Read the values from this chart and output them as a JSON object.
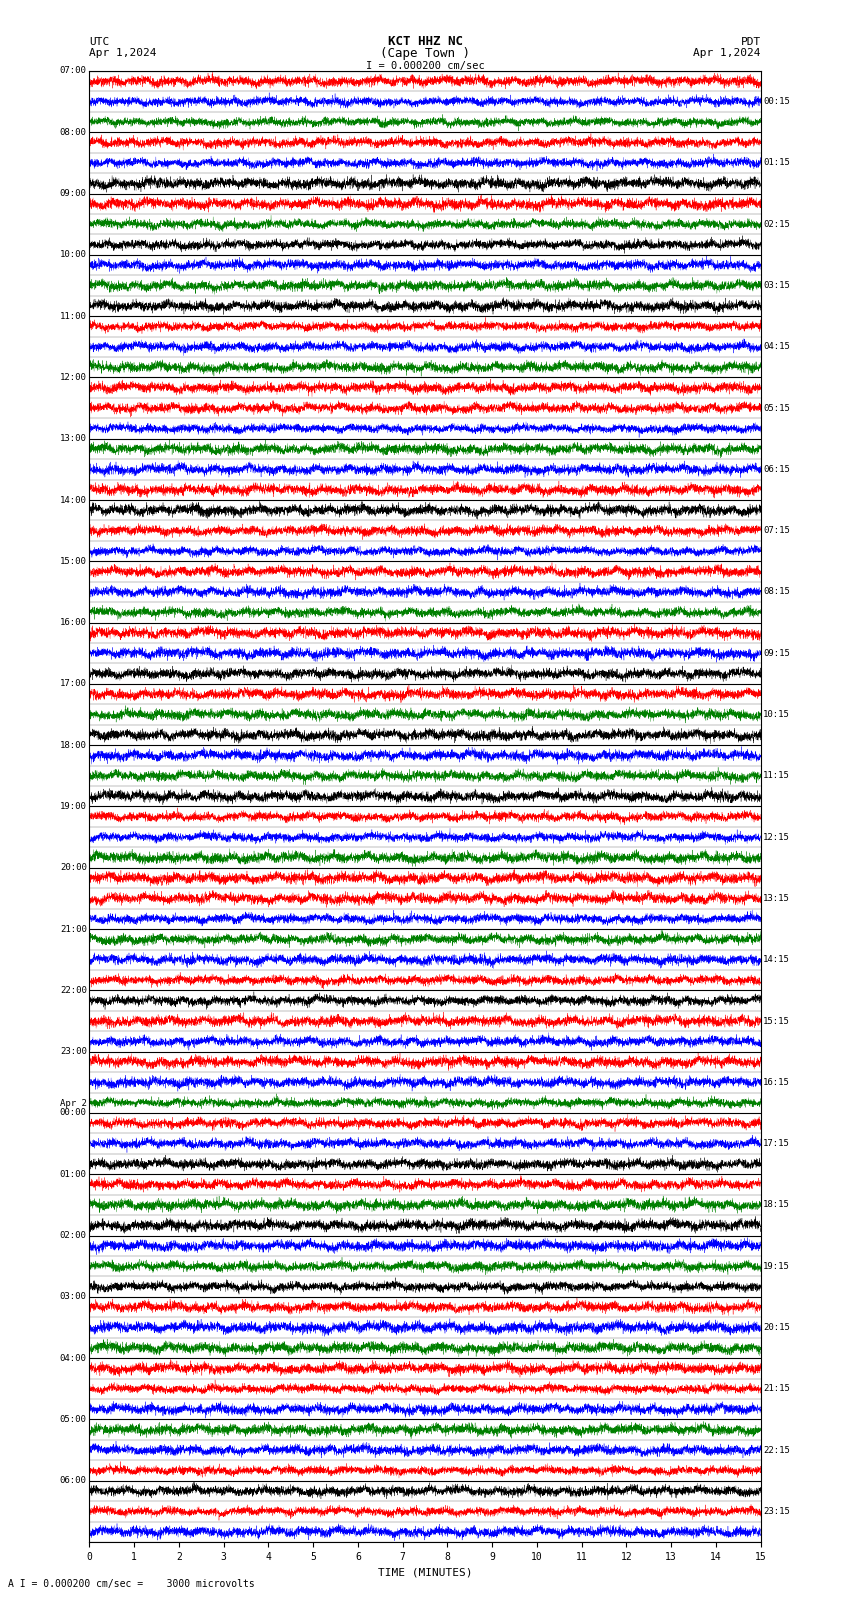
{
  "title_line1": "KCT HHZ NC",
  "title_line2": "(Cape Town )",
  "scale_text": "I = 0.000200 cm/sec",
  "utc_label": "UTC",
  "utc_date": "Apr 1,2024",
  "pdt_label": "PDT",
  "pdt_date": "Apr 1,2024",
  "bottom_note": "A I = 0.000200 cm/sec =    3000 microvolts",
  "left_times": [
    "07:00",
    "08:00",
    "09:00",
    "10:00",
    "11:00",
    "12:00",
    "13:00",
    "14:00",
    "15:00",
    "16:00",
    "17:00",
    "18:00",
    "19:00",
    "20:00",
    "21:00",
    "22:00",
    "23:00",
    "Apr 2\n00:00",
    "01:00",
    "02:00",
    "03:00",
    "04:00",
    "05:00",
    "06:00"
  ],
  "right_times": [
    "00:15",
    "01:15",
    "02:15",
    "03:15",
    "04:15",
    "05:15",
    "06:15",
    "07:15",
    "08:15",
    "09:15",
    "10:15",
    "11:15",
    "12:15",
    "13:15",
    "14:15",
    "15:15",
    "16:15",
    "17:15",
    "18:15",
    "19:15",
    "20:15",
    "21:15",
    "22:15",
    "23:15"
  ],
  "n_rows": 24,
  "n_cols": 15,
  "xlabel": "TIME (MINUTES)",
  "xticks": [
    0,
    1,
    2,
    3,
    4,
    5,
    6,
    7,
    8,
    9,
    10,
    11,
    12,
    13,
    14,
    15
  ],
  "fig_width": 8.5,
  "fig_height": 16.13,
  "dpi": 100,
  "noise_seed": 42,
  "sub_rows_per_row": 3,
  "pts_per_subrow": 6000,
  "amplitude": 0.44,
  "sub_row_colors_cycle": [
    [
      "red",
      "blue",
      "green"
    ],
    [
      "red",
      "blue",
      "black"
    ],
    [
      "red",
      "green",
      "black"
    ],
    [
      "blue",
      "green",
      "black"
    ],
    [
      "red",
      "blue",
      "green"
    ],
    [
      "red",
      "red",
      "blue"
    ],
    [
      "green",
      "blue",
      "red"
    ],
    [
      "black",
      "red",
      "blue"
    ],
    [
      "red",
      "blue",
      "green"
    ],
    [
      "red",
      "blue",
      "black"
    ],
    [
      "red",
      "green",
      "black"
    ],
    [
      "blue",
      "green",
      "black"
    ],
    [
      "red",
      "blue",
      "green"
    ],
    [
      "red",
      "red",
      "blue"
    ],
    [
      "green",
      "blue",
      "red"
    ],
    [
      "black",
      "red",
      "blue"
    ],
    [
      "red",
      "blue",
      "green"
    ],
    [
      "red",
      "blue",
      "black"
    ],
    [
      "red",
      "green",
      "black"
    ],
    [
      "blue",
      "green",
      "black"
    ],
    [
      "red",
      "blue",
      "green"
    ],
    [
      "red",
      "red",
      "blue"
    ],
    [
      "green",
      "blue",
      "red"
    ],
    [
      "black",
      "red",
      "blue"
    ]
  ]
}
